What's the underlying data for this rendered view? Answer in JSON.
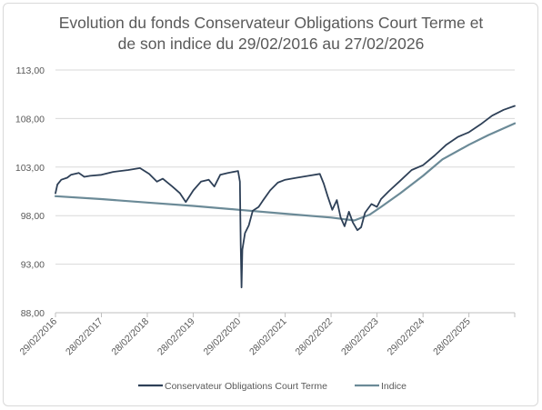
{
  "chart_data": {
    "type": "line",
    "title": "Evolution du fonds Conservateur Obligations Court Terme et de son indice du 29/02/2016 au 27/02/2026",
    "title_lines": [
      "Evolution du fonds Conservateur Obligations Court Terme et",
      "de son indice du 29/02/2016 au 27/02/2026"
    ],
    "y_ticks": [
      "113,00",
      "108,00",
      "103,00",
      "98,00",
      "93,00",
      "88,00"
    ],
    "ylim": [
      88,
      113
    ],
    "x_ticks": [
      "29/02/2016",
      "28/02/2017",
      "28/02/2018",
      "28/02/2019",
      "29/02/2020",
      "28/02/2021",
      "28/02/2022",
      "28/02/2023",
      "29/02/2024",
      "28/02/2025"
    ],
    "xlim": [
      "2016-02-29",
      "2026-02-27"
    ],
    "grid": "horizontal",
    "legend_position": "bottom",
    "series": [
      {
        "name": "Conservateur Obligations Court Terme",
        "color": "#2e4057",
        "points": [
          [
            "2016-02-29",
            100.3
          ],
          [
            "2016-03-15",
            101.2
          ],
          [
            "2016-04-15",
            101.7
          ],
          [
            "2016-06-01",
            101.9
          ],
          [
            "2016-07-01",
            102.2
          ],
          [
            "2016-09-01",
            102.4
          ],
          [
            "2016-10-15",
            102.0
          ],
          [
            "2016-12-01",
            102.1
          ],
          [
            "2017-02-28",
            102.2
          ],
          [
            "2017-06-01",
            102.5
          ],
          [
            "2017-10-01",
            102.7
          ],
          [
            "2018-01-01",
            102.9
          ],
          [
            "2018-03-15",
            102.3
          ],
          [
            "2018-05-15",
            101.5
          ],
          [
            "2018-07-01",
            101.8
          ],
          [
            "2018-09-15",
            101.0
          ],
          [
            "2018-11-15",
            100.3
          ],
          [
            "2018-12-31",
            99.4
          ],
          [
            "2019-03-01",
            100.6
          ],
          [
            "2019-05-01",
            101.5
          ],
          [
            "2019-07-01",
            101.7
          ],
          [
            "2019-08-15",
            101.0
          ],
          [
            "2019-10-01",
            102.2
          ],
          [
            "2019-12-01",
            102.4
          ],
          [
            "2020-02-20",
            102.6
          ],
          [
            "2020-03-05",
            101.5
          ],
          [
            "2020-03-12",
            95.0
          ],
          [
            "2020-03-18",
            90.6
          ],
          [
            "2020-03-25",
            94.5
          ],
          [
            "2020-04-15",
            96.2
          ],
          [
            "2020-05-15",
            97.0
          ],
          [
            "2020-06-15",
            98.5
          ],
          [
            "2020-08-01",
            98.9
          ],
          [
            "2020-09-01",
            99.5
          ],
          [
            "2020-11-01",
            100.6
          ],
          [
            "2021-01-01",
            101.4
          ],
          [
            "2021-03-01",
            101.7
          ],
          [
            "2021-06-01",
            101.9
          ],
          [
            "2021-09-01",
            102.1
          ],
          [
            "2021-12-01",
            102.3
          ],
          [
            "2022-01-01",
            101.3
          ],
          [
            "2022-02-01",
            100.0
          ],
          [
            "2022-03-10",
            98.6
          ],
          [
            "2022-04-15",
            99.6
          ],
          [
            "2022-05-15",
            97.8
          ],
          [
            "2022-06-15",
            96.9
          ],
          [
            "2022-07-20",
            98.4
          ],
          [
            "2022-08-20",
            97.3
          ],
          [
            "2022-09-25",
            96.5
          ],
          [
            "2022-10-25",
            96.8
          ],
          [
            "2022-11-25",
            98.3
          ],
          [
            "2023-01-15",
            99.2
          ],
          [
            "2023-02-28",
            98.9
          ],
          [
            "2023-04-01",
            99.7
          ],
          [
            "2023-06-01",
            100.5
          ],
          [
            "2023-09-01",
            101.6
          ],
          [
            "2023-12-01",
            102.7
          ],
          [
            "2024-02-29",
            103.2
          ],
          [
            "2024-06-01",
            104.2
          ],
          [
            "2024-09-01",
            105.3
          ],
          [
            "2024-12-01",
            106.1
          ],
          [
            "2025-02-28",
            106.6
          ],
          [
            "2025-06-01",
            107.4
          ],
          [
            "2025-09-01",
            108.3
          ],
          [
            "2025-12-01",
            108.9
          ],
          [
            "2026-02-27",
            109.3
          ]
        ]
      },
      {
        "name": "Indice",
        "color": "#6b8a97",
        "points": [
          [
            "2016-02-29",
            100.0
          ],
          [
            "2017-02-28",
            99.7
          ],
          [
            "2018-02-28",
            99.35
          ],
          [
            "2019-02-28",
            99.0
          ],
          [
            "2020-02-29",
            98.6
          ],
          [
            "2021-02-28",
            98.2
          ],
          [
            "2022-02-28",
            97.8
          ],
          [
            "2022-09-01",
            97.5
          ],
          [
            "2023-01-01",
            98.1
          ],
          [
            "2023-04-01",
            98.9
          ],
          [
            "2023-09-01",
            100.3
          ],
          [
            "2024-02-29",
            102.1
          ],
          [
            "2024-08-01",
            103.8
          ],
          [
            "2025-02-28",
            105.3
          ],
          [
            "2025-08-01",
            106.3
          ],
          [
            "2026-02-27",
            107.5
          ]
        ]
      }
    ]
  }
}
